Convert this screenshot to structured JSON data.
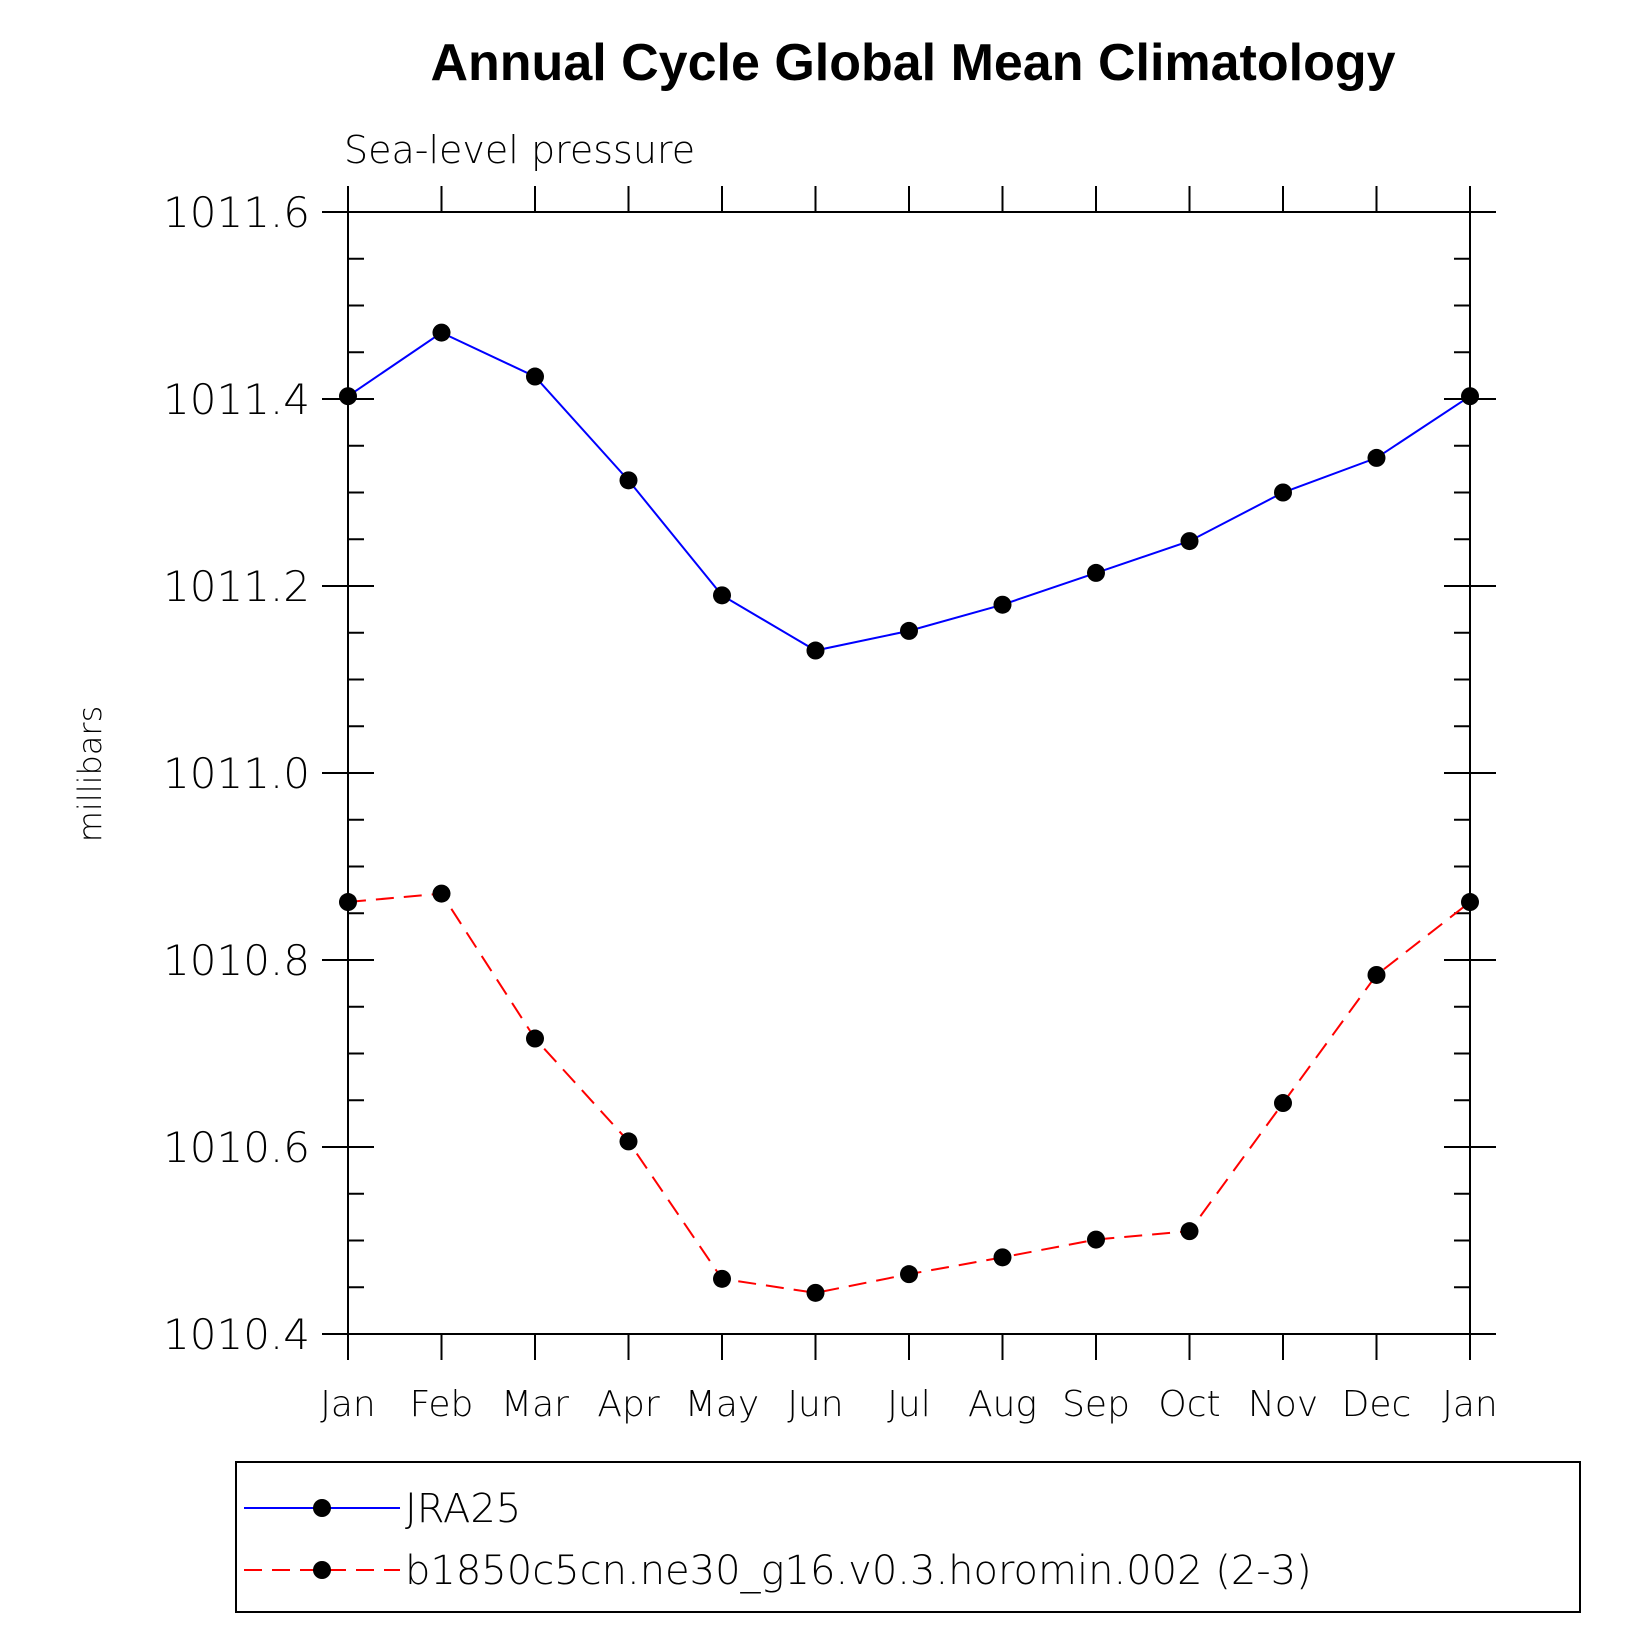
{
  "chart_data": {
    "type": "line",
    "title": "Annual Cycle Global Mean Climatology",
    "subtitle": "Sea-level pressure",
    "xlabel": "",
    "ylabel": "millibars",
    "categories": [
      "Jan",
      "Feb",
      "Mar",
      "Apr",
      "May",
      "Jun",
      "Jul",
      "Aug",
      "Sep",
      "Oct",
      "Nov",
      "Dec",
      "Jan"
    ],
    "ylim": [
      1010.4,
      1011.6
    ],
    "yticks": [
      "1010.4",
      "1010.6",
      "1010.8",
      "1011.0",
      "1011.2",
      "1011.4",
      "1011.6"
    ],
    "grid": false,
    "legend_position": "bottom",
    "series": [
      {
        "name": "JRA25",
        "color": "#0000ff",
        "dash": "solid",
        "values": [
          1011.403,
          1011.471,
          1011.424,
          1011.313,
          1011.19,
          1011.131,
          1011.152,
          1011.18,
          1011.214,
          1011.248,
          1011.3,
          1011.337,
          1011.403
        ]
      },
      {
        "name": "b1850c5cn.ne30_g16.v0.3.horomin.002 (2-3)",
        "color": "#ff0000",
        "dash": "dashed",
        "values": [
          1010.862,
          1010.871,
          1010.716,
          1010.606,
          1010.459,
          1010.444,
          1010.464,
          1010.482,
          1010.501,
          1010.51,
          1010.647,
          1010.784,
          1010.862
        ]
      }
    ]
  }
}
